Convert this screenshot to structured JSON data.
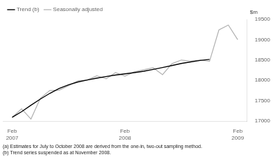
{
  "chart_data": {
    "type": "line",
    "ylabel": "$m",
    "annotations": [
      "(a) Estimates for July to October 2008 are derived from the one-in, two-out sampling method.",
      "(b) Trend series suspended as at November 2008."
    ],
    "x": [
      0,
      1,
      2,
      3,
      4,
      5,
      6,
      7,
      8,
      9,
      10,
      11,
      12,
      13,
      14,
      15,
      16,
      17,
      18,
      19,
      20,
      21,
      22,
      23,
      24
    ],
    "series": [
      {
        "name": "Trend (b)",
        "color": "#000000",
        "values": [
          17090,
          17230,
          17390,
          17540,
          17680,
          17800,
          17890,
          17960,
          18010,
          18055,
          18095,
          18130,
          18160,
          18190,
          18225,
          18270,
          18315,
          18365,
          18415,
          18455,
          18490,
          18515,
          null,
          null,
          null
        ]
      },
      {
        "name": "Seasonally adjusted",
        "color": "#b0b0b0",
        "values": [
          17090,
          17300,
          17050,
          17560,
          17750,
          17760,
          17870,
          17990,
          18010,
          18110,
          18040,
          18190,
          18105,
          18210,
          18260,
          18310,
          18140,
          18410,
          18500,
          18475,
          18500,
          18470,
          19240,
          19360,
          19000
        ]
      }
    ],
    "xlim": [
      -1,
      25
    ],
    "xticks": [
      {
        "value": 0,
        "label": "Feb\n2007"
      },
      {
        "value": 12,
        "label": "Feb\n2008"
      },
      {
        "value": 24,
        "label": "Feb\n2009"
      }
    ],
    "ylim": [
      17000,
      19500
    ],
    "yticks": [
      17000,
      17500,
      18000,
      18500,
      19000,
      19500
    ],
    "grid": false,
    "legend": "upper left"
  }
}
